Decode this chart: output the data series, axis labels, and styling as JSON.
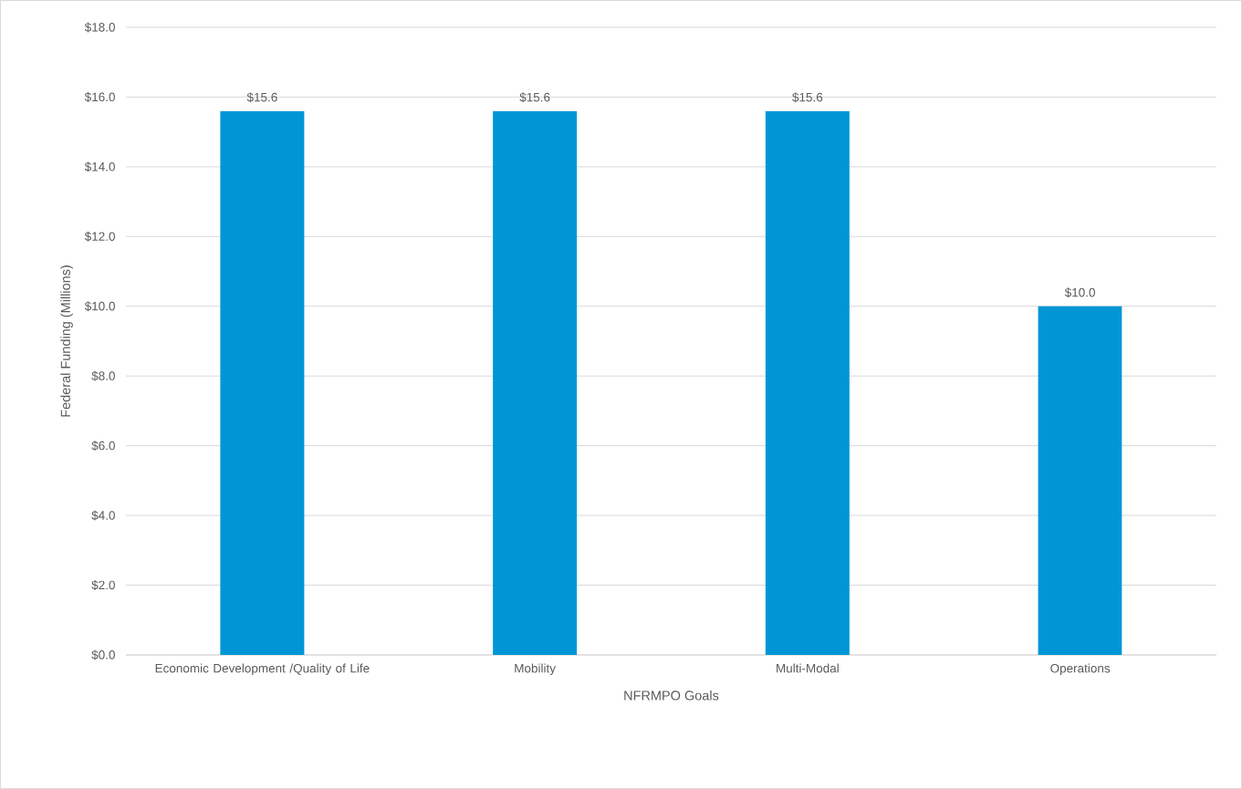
{
  "chart_data": {
    "type": "bar",
    "xlabel": "NFRMPO Goals",
    "ylabel": "Federal Funding (Millions)",
    "categories": [
      "Economic Development /Quality of Life",
      "Mobility",
      "Multi-Modal",
      "Operations"
    ],
    "values": [
      15.6,
      15.6,
      15.6,
      10.0
    ],
    "color": "#0096d6",
    "value_labels": [
      "$15.6",
      "$15.6",
      "$15.6",
      "$10.0"
    ],
    "ylim": [
      0,
      18
    ],
    "yticks": [
      {
        "value": 0,
        "label": "$0.0"
      },
      {
        "value": 2,
        "label": "$2.0"
      },
      {
        "value": 4,
        "label": "$4.0"
      },
      {
        "value": 6,
        "label": "$6.0"
      },
      {
        "value": 8,
        "label": "$8.0"
      },
      {
        "value": 10,
        "label": "$10.0"
      },
      {
        "value": 12,
        "label": "$12.0"
      },
      {
        "value": 14,
        "label": "$14.0"
      },
      {
        "value": 16,
        "label": "$16.0"
      },
      {
        "value": 18,
        "label": "$18.0"
      }
    ],
    "grid": "y"
  }
}
